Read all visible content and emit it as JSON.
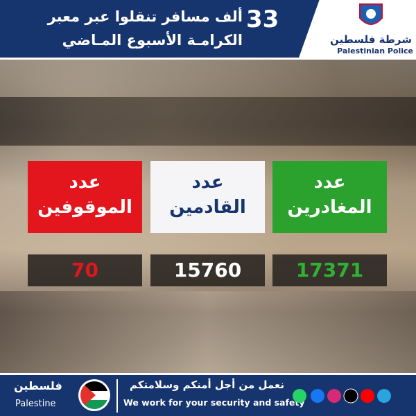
{
  "header": {
    "number": 33,
    "title_line1": "ألف مسافر تنقلوا عبر معبر",
    "title_line2": "الكرامـة الأسبوع المـاضي",
    "logo_ar": "شرطة فلسطين",
    "logo_en": "Palestinian Police"
  },
  "cards": [
    {
      "label_top": "عدد",
      "label_bottom": "الموقوفين",
      "value": 70
    },
    {
      "label_top": "عدد",
      "label_bottom": "القادمين",
      "value": 15760
    },
    {
      "label_top": "عدد",
      "label_bottom": "المغادرين",
      "value": 17371
    }
  ],
  "footer": {
    "brand_ar": "فلسطين",
    "brand_en": "Palestine",
    "slogan_ar": "نعمل من أجل أمنكم وسلامتكم",
    "slogan_en": "We work for your security and safety"
  }
}
